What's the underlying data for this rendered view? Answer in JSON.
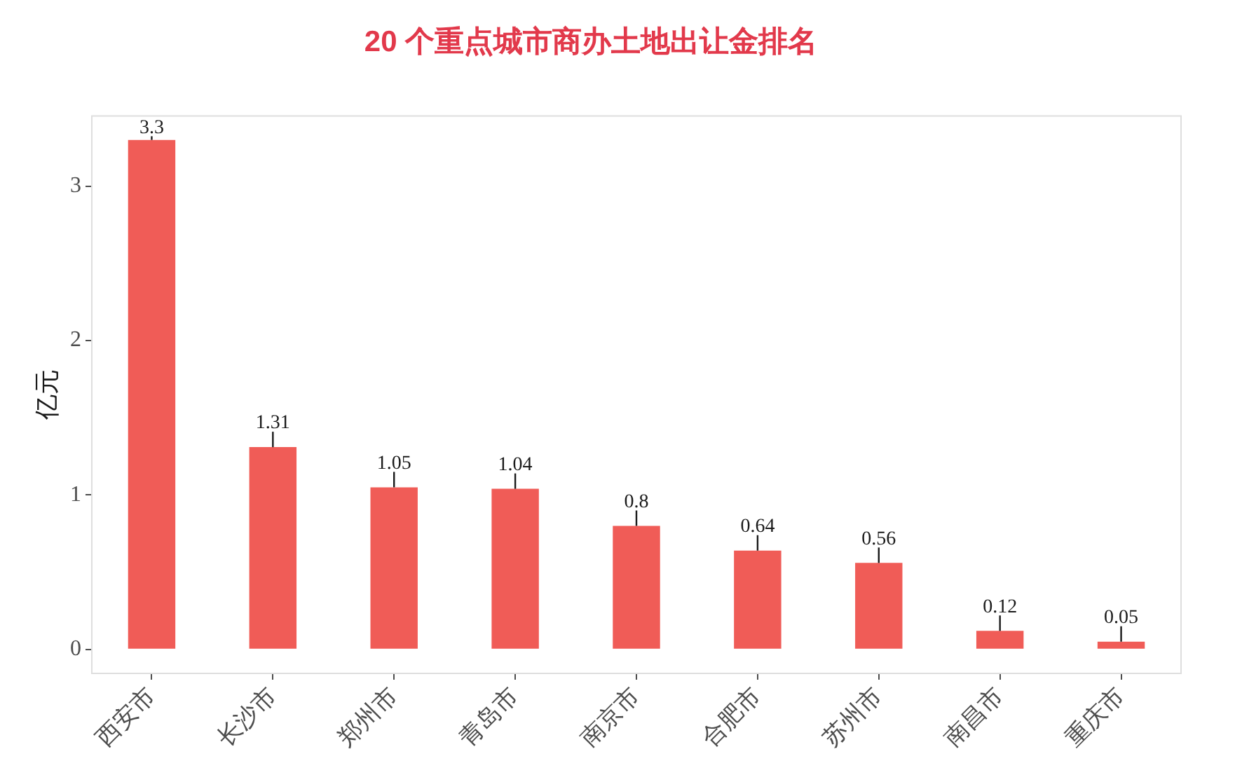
{
  "chart_data": {
    "type": "bar",
    "title": "20 个重点城市商办土地出让金排名",
    "ylabel": "亿元",
    "categories": [
      "西安市",
      "长沙市",
      "郑州市",
      "青岛市",
      "南京市",
      "合肥市",
      "苏州市",
      "南昌市",
      "重庆市"
    ],
    "values": [
      3.3,
      1.31,
      1.05,
      1.04,
      0.8,
      0.64,
      0.56,
      0.12,
      0.05
    ],
    "color": "#f05c57",
    "ylim": [
      -0.16,
      3.46
    ],
    "yticks": [
      0,
      1,
      2,
      3
    ],
    "grid": false,
    "legend": false,
    "data_labels": true
  }
}
